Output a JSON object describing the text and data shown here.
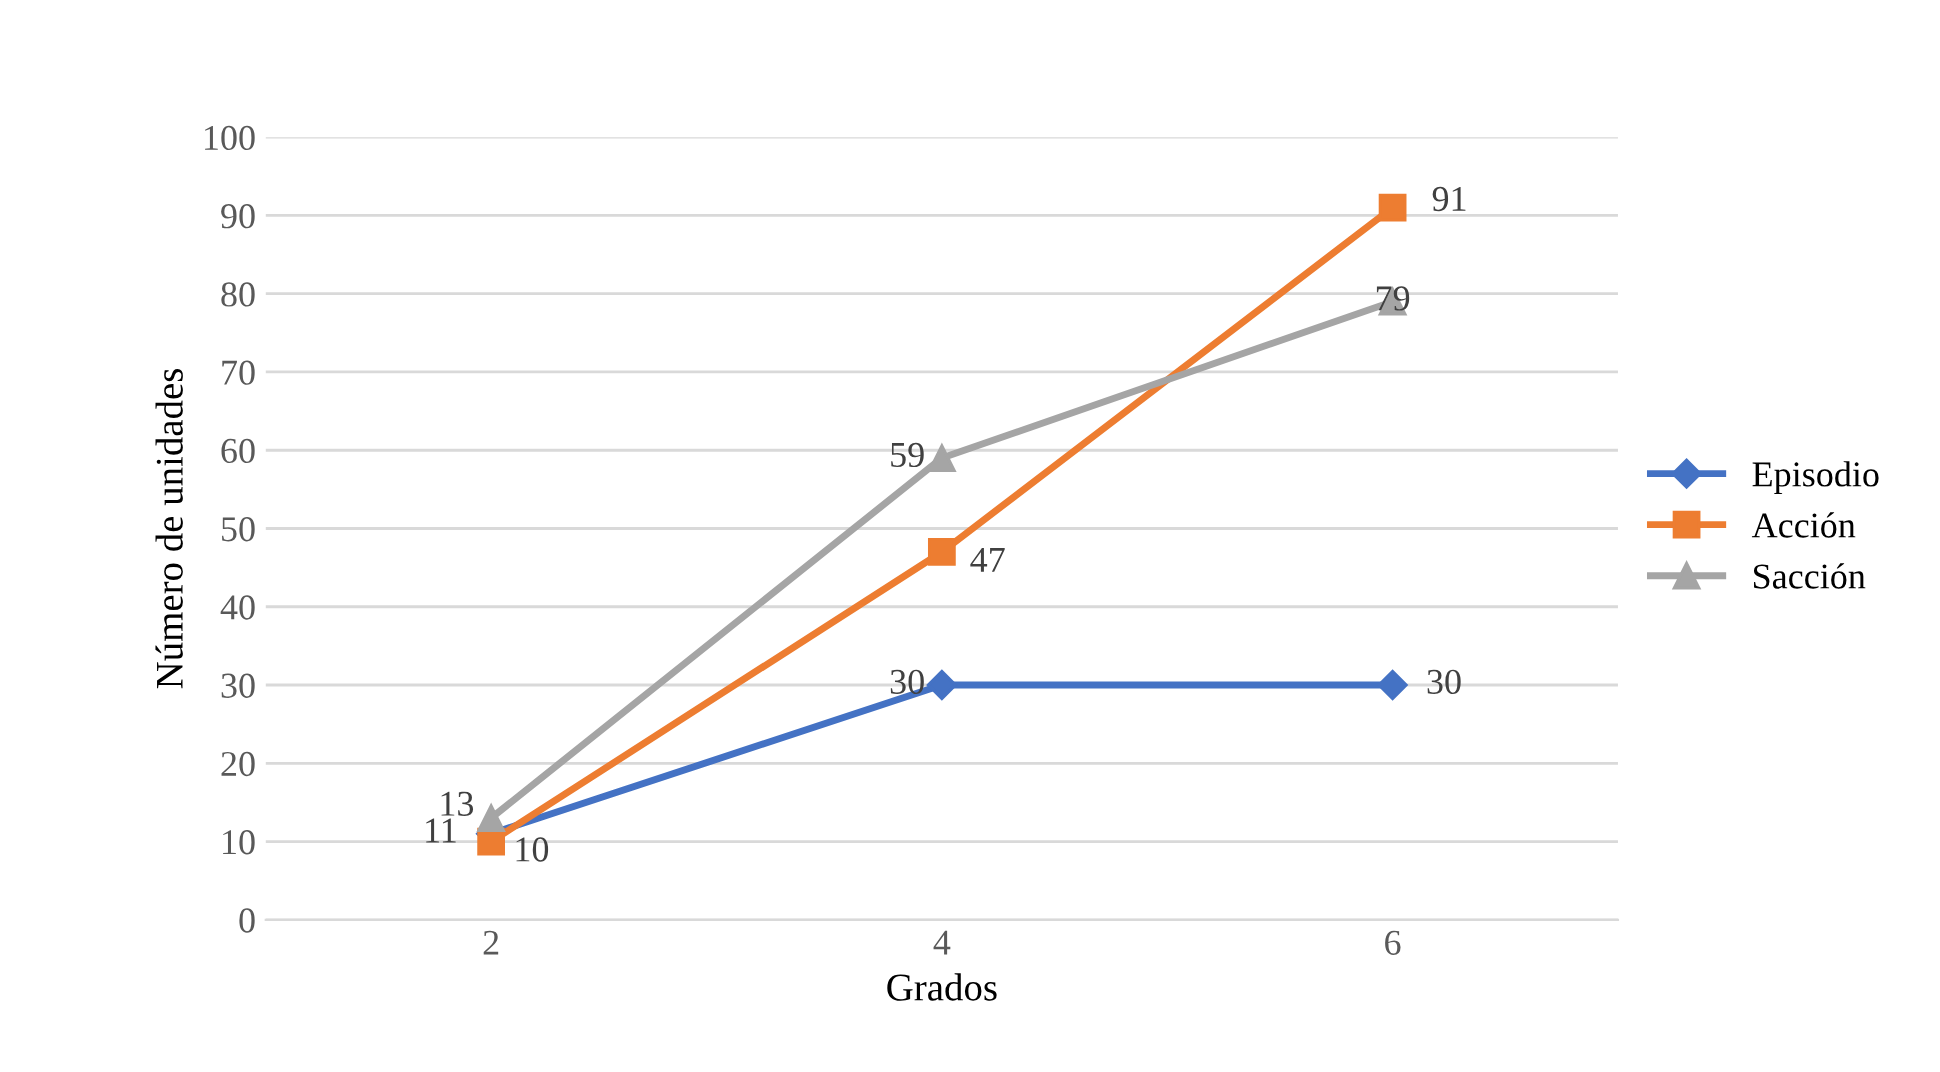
{
  "chart_data": {
    "type": "line",
    "xlabel": "Grados",
    "ylabel": "Número de unidades",
    "categories": [
      "2",
      "4",
      "6"
    ],
    "series": [
      {
        "name": "Episodio",
        "color": "#4472c4",
        "marker": "diamond",
        "values": [
          11,
          30,
          30
        ]
      },
      {
        "name": "Acción",
        "color": "#ed7d31",
        "marker": "square",
        "values": [
          10,
          47,
          91
        ]
      },
      {
        "name": "Sacción",
        "color": "#a5a5a5",
        "marker": "triangle",
        "values": [
          13,
          59,
          79
        ]
      }
    ],
    "ylim": [
      0,
      100
    ],
    "yticks": [
      0,
      10,
      20,
      30,
      40,
      50,
      60,
      70,
      80,
      90,
      100
    ],
    "grid": "y",
    "legend": "right",
    "data_labels": true,
    "line_style": "solid"
  }
}
